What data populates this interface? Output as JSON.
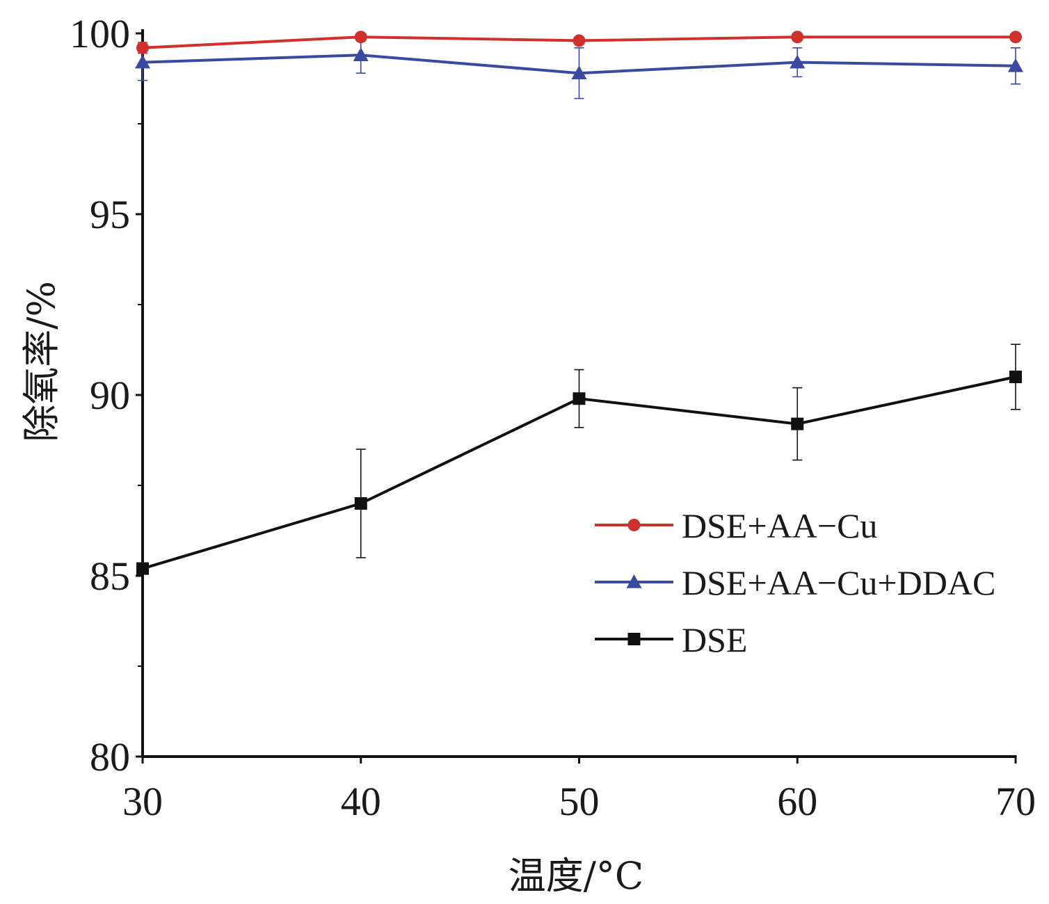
{
  "chart_data": {
    "type": "line",
    "title": "",
    "xlabel": "温度/°C",
    "ylabel": "除氧率/%",
    "x": [
      30,
      40,
      50,
      60,
      70
    ],
    "xlim": [
      30,
      70
    ],
    "ylim": [
      80,
      100
    ],
    "xticks": [
      30,
      40,
      50,
      60,
      70
    ],
    "yticks": [
      80,
      85,
      90,
      95,
      100
    ],
    "xtick_labels": [
      "30",
      "40",
      "50",
      "60",
      "70"
    ],
    "ytick_labels": [
      "80",
      "85",
      "90",
      "95",
      "100"
    ],
    "grid": false,
    "legend_position": "center-right",
    "series": [
      {
        "name": "DSE+AA−Cu",
        "color": "#d0312d",
        "marker": "circle",
        "values": [
          99.6,
          99.9,
          99.8,
          99.9,
          99.9
        ],
        "errors": [
          0.15,
          0.1,
          0.1,
          0.1,
          0.1
        ]
      },
      {
        "name": "DSE+AA−Cu+DDAC",
        "color": "#3a4aa0",
        "marker": "triangle",
        "values": [
          99.2,
          99.4,
          98.9,
          99.2,
          99.1
        ],
        "errors": [
          0.5,
          0.5,
          0.7,
          0.4,
          0.5
        ]
      },
      {
        "name": "DSE",
        "color": "#111111",
        "marker": "square",
        "values": [
          85.2,
          87.0,
          89.9,
          89.2,
          90.5
        ],
        "errors": [
          0.0,
          1.5,
          0.8,
          1.0,
          0.9
        ]
      }
    ]
  }
}
